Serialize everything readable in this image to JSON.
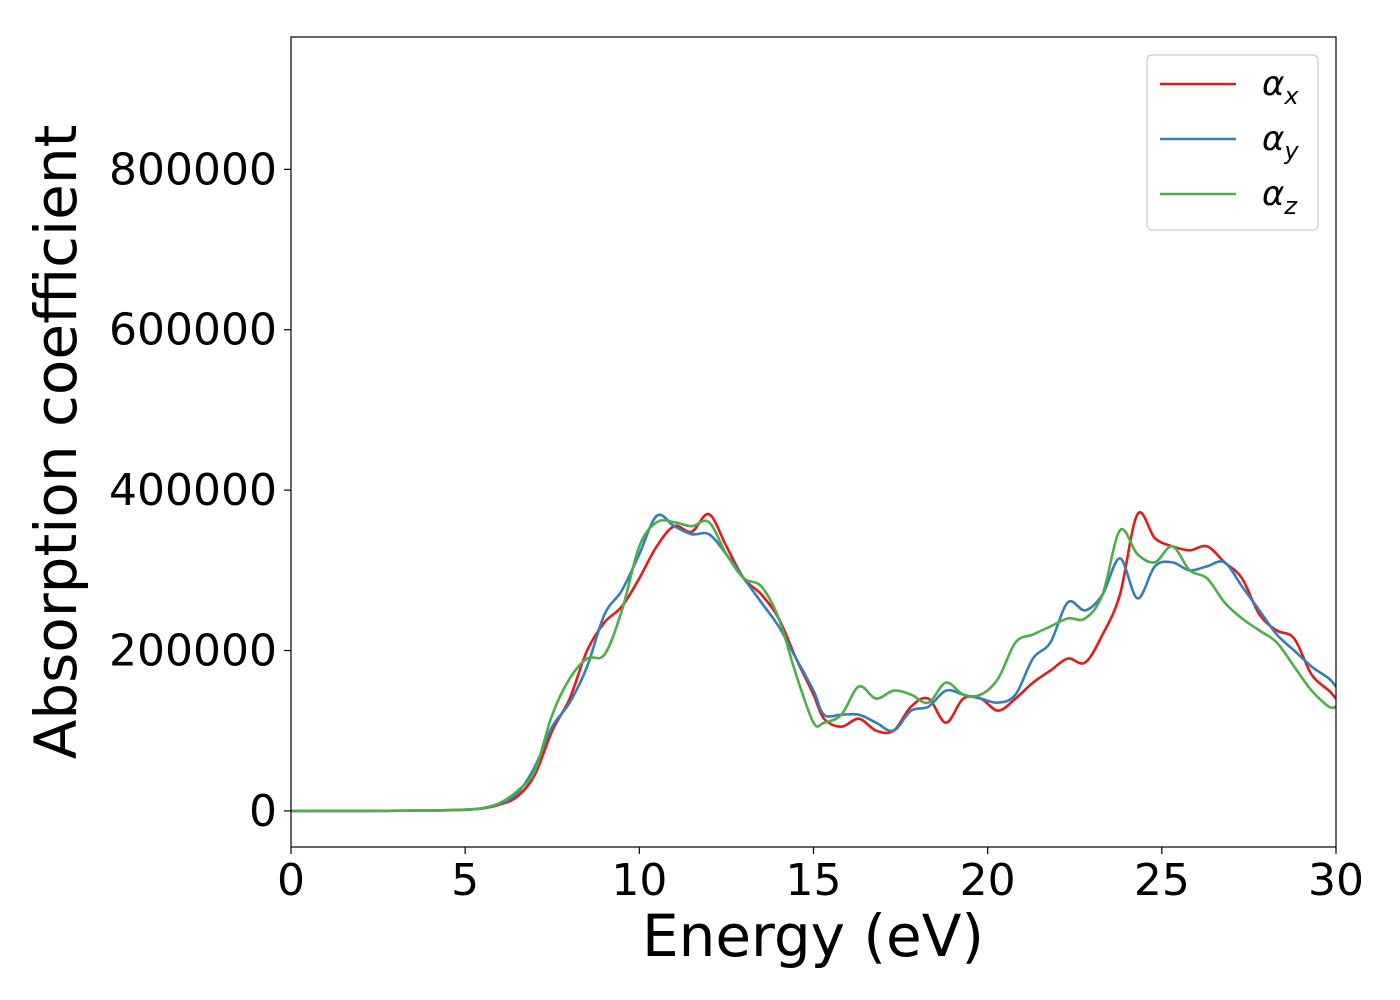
{
  "chart_data": {
    "type": "line",
    "title": "",
    "xlabel": "Energy (eV)",
    "ylabel": "Absorption coefficient",
    "xlim": [
      0,
      30
    ],
    "ylim": [
      -45000,
      965000
    ],
    "xticks": [
      0,
      5,
      10,
      15,
      20,
      25,
      30
    ],
    "yticks": [
      0,
      200000,
      400000,
      600000,
      800000
    ],
    "grid": false,
    "legend_position": "top-right",
    "series": [
      {
        "name": "α",
        "subscript": "x",
        "color": "#e41a1c",
        "points": [
          [
            0,
            0
          ],
          [
            2,
            0
          ],
          [
            4,
            500
          ],
          [
            5,
            1500
          ],
          [
            5.5,
            3000
          ],
          [
            6,
            8000
          ],
          [
            6.5,
            18000
          ],
          [
            7,
            45000
          ],
          [
            7.5,
            100000
          ],
          [
            8,
            140000
          ],
          [
            8.5,
            200000
          ],
          [
            9,
            235000
          ],
          [
            9.5,
            255000
          ],
          [
            10,
            290000
          ],
          [
            10.5,
            330000
          ],
          [
            11,
            355000
          ],
          [
            11.5,
            348000
          ],
          [
            12,
            370000
          ],
          [
            12.5,
            330000
          ],
          [
            13,
            290000
          ],
          [
            13.5,
            270000
          ],
          [
            14,
            240000
          ],
          [
            14.5,
            190000
          ],
          [
            15,
            145000
          ],
          [
            15.3,
            115000
          ],
          [
            15.8,
            105000
          ],
          [
            16.3,
            115000
          ],
          [
            16.8,
            100000
          ],
          [
            17.3,
            100000
          ],
          [
            17.8,
            130000
          ],
          [
            18.3,
            140000
          ],
          [
            18.8,
            110000
          ],
          [
            19.3,
            140000
          ],
          [
            19.8,
            140000
          ],
          [
            20.3,
            125000
          ],
          [
            20.8,
            140000
          ],
          [
            21.3,
            160000
          ],
          [
            21.8,
            175000
          ],
          [
            22.3,
            190000
          ],
          [
            22.8,
            185000
          ],
          [
            23.3,
            220000
          ],
          [
            23.8,
            270000
          ],
          [
            24.3,
            370000
          ],
          [
            24.8,
            340000
          ],
          [
            25.3,
            330000
          ],
          [
            25.8,
            325000
          ],
          [
            26.3,
            330000
          ],
          [
            26.8,
            310000
          ],
          [
            27.3,
            290000
          ],
          [
            27.8,
            245000
          ],
          [
            28.3,
            225000
          ],
          [
            28.8,
            215000
          ],
          [
            29.3,
            170000
          ],
          [
            29.8,
            150000
          ],
          [
            30,
            140000
          ]
        ]
      },
      {
        "name": "α",
        "subscript": "y",
        "color": "#377eb8",
        "points": [
          [
            0,
            0
          ],
          [
            2,
            0
          ],
          [
            4,
            500
          ],
          [
            5,
            1500
          ],
          [
            5.5,
            3500
          ],
          [
            6,
            9000
          ],
          [
            6.5,
            22000
          ],
          [
            7,
            55000
          ],
          [
            7.5,
            105000
          ],
          [
            8,
            135000
          ],
          [
            8.5,
            180000
          ],
          [
            9,
            245000
          ],
          [
            9.5,
            275000
          ],
          [
            10,
            320000
          ],
          [
            10.5,
            368000
          ],
          [
            11,
            355000
          ],
          [
            11.5,
            345000
          ],
          [
            12,
            345000
          ],
          [
            12.5,
            320000
          ],
          [
            13,
            290000
          ],
          [
            13.5,
            260000
          ],
          [
            14,
            230000
          ],
          [
            14.5,
            190000
          ],
          [
            15,
            150000
          ],
          [
            15.3,
            120000
          ],
          [
            15.8,
            120000
          ],
          [
            16.3,
            120000
          ],
          [
            16.8,
            110000
          ],
          [
            17.3,
            100000
          ],
          [
            17.8,
            125000
          ],
          [
            18.3,
            130000
          ],
          [
            18.8,
            150000
          ],
          [
            19.3,
            145000
          ],
          [
            19.8,
            140000
          ],
          [
            20.3,
            135000
          ],
          [
            20.8,
            145000
          ],
          [
            21.3,
            190000
          ],
          [
            21.8,
            210000
          ],
          [
            22.3,
            260000
          ],
          [
            22.8,
            250000
          ],
          [
            23.3,
            270000
          ],
          [
            23.8,
            315000
          ],
          [
            24.3,
            265000
          ],
          [
            24.8,
            305000
          ],
          [
            25.3,
            310000
          ],
          [
            25.8,
            300000
          ],
          [
            26.3,
            305000
          ],
          [
            26.8,
            310000
          ],
          [
            27.3,
            280000
          ],
          [
            27.8,
            250000
          ],
          [
            28.3,
            220000
          ],
          [
            28.8,
            200000
          ],
          [
            29.3,
            180000
          ],
          [
            29.8,
            165000
          ],
          [
            30,
            155000
          ]
        ]
      },
      {
        "name": "α",
        "subscript": "z",
        "color": "#4daf4a",
        "points": [
          [
            0,
            0
          ],
          [
            2,
            0
          ],
          [
            4,
            500
          ],
          [
            5,
            1500
          ],
          [
            5.5,
            3500
          ],
          [
            6,
            10000
          ],
          [
            6.5,
            25000
          ],
          [
            7,
            50000
          ],
          [
            7.5,
            120000
          ],
          [
            8,
            165000
          ],
          [
            8.5,
            190000
          ],
          [
            9,
            195000
          ],
          [
            9.5,
            250000
          ],
          [
            10,
            330000
          ],
          [
            10.5,
            360000
          ],
          [
            11,
            360000
          ],
          [
            11.5,
            355000
          ],
          [
            12,
            360000
          ],
          [
            12.5,
            320000
          ],
          [
            13,
            290000
          ],
          [
            13.5,
            280000
          ],
          [
            14,
            240000
          ],
          [
            14.5,
            170000
          ],
          [
            15,
            110000
          ],
          [
            15.3,
            110000
          ],
          [
            15.8,
            120000
          ],
          [
            16.3,
            155000
          ],
          [
            16.8,
            140000
          ],
          [
            17.3,
            150000
          ],
          [
            17.8,
            145000
          ],
          [
            18.3,
            135000
          ],
          [
            18.8,
            160000
          ],
          [
            19.3,
            145000
          ],
          [
            19.8,
            145000
          ],
          [
            20.3,
            165000
          ],
          [
            20.8,
            210000
          ],
          [
            21.3,
            220000
          ],
          [
            21.8,
            230000
          ],
          [
            22.3,
            240000
          ],
          [
            22.8,
            240000
          ],
          [
            23.3,
            270000
          ],
          [
            23.8,
            350000
          ],
          [
            24.3,
            320000
          ],
          [
            24.8,
            310000
          ],
          [
            25.3,
            330000
          ],
          [
            25.8,
            300000
          ],
          [
            26.3,
            290000
          ],
          [
            26.8,
            260000
          ],
          [
            27.3,
            240000
          ],
          [
            27.8,
            225000
          ],
          [
            28.3,
            210000
          ],
          [
            28.8,
            180000
          ],
          [
            29.3,
            150000
          ],
          [
            29.8,
            130000
          ],
          [
            30,
            130000
          ]
        ]
      }
    ]
  }
}
